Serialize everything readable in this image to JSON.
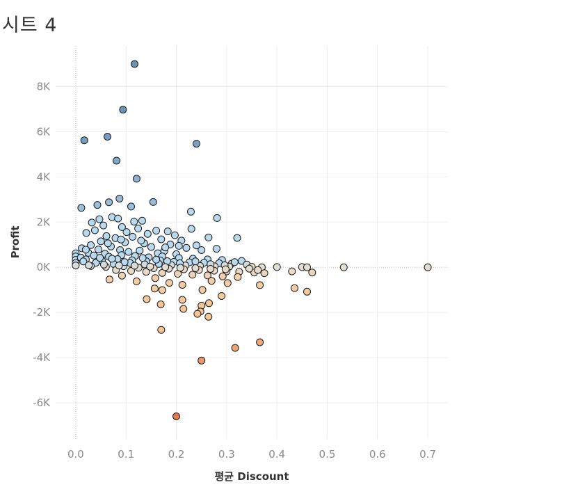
{
  "sheet": {
    "title": "시트 4"
  },
  "colors": {
    "positive": "#6b93b8",
    "positive_light": "#b9d9ee",
    "neutral": "#e4ddd1",
    "negative_light": "#f6c795",
    "negative": "#e07b4f"
  },
  "chart_data": {
    "type": "scatter",
    "title": "시트 4",
    "xlabel": "평균 Discount",
    "ylabel": "Profit",
    "xlim": [
      -0.04,
      0.74
    ],
    "ylim": [
      -7600,
      9800
    ],
    "x_ticks": [
      0.0,
      0.1,
      0.2,
      0.3,
      0.4,
      0.5,
      0.6,
      0.7
    ],
    "x_tick_labels": [
      "0.0",
      "0.1",
      "0.2",
      "0.3",
      "0.4",
      "0.5",
      "0.6",
      "0.7"
    ],
    "y_ticks": [
      8000,
      6000,
      4000,
      2000,
      0,
      -2000,
      -4000,
      -6000
    ],
    "y_tick_labels": [
      "8K",
      "6K",
      "4K",
      "2K",
      "0K",
      "-2K",
      "-4K",
      "-6K"
    ],
    "grid": true,
    "color_by": "Profit (diverging blue-orange)",
    "points": [
      [
        0.117,
        9000
      ],
      [
        0.094,
        6980
      ],
      [
        0.017,
        5620
      ],
      [
        0.063,
        5780
      ],
      [
        0.24,
        5470
      ],
      [
        0.081,
        4720
      ],
      [
        0.121,
        3920
      ],
      [
        0.087,
        3040
      ],
      [
        0.066,
        2880
      ],
      [
        0.154,
        2890
      ],
      [
        0.043,
        2760
      ],
      [
        0.011,
        2630
      ],
      [
        0.11,
        2690
      ],
      [
        0.229,
        2460
      ],
      [
        0.281,
        2180
      ],
      [
        0.072,
        2220
      ],
      [
        0.084,
        2160
      ],
      [
        0.032,
        1980
      ],
      [
        0.047,
        2130
      ],
      [
        0.116,
        2020
      ],
      [
        0.132,
        2060
      ],
      [
        0.055,
        1850
      ],
      [
        0.092,
        1780
      ],
      [
        0.124,
        1720
      ],
      [
        0.16,
        1620
      ],
      [
        0.183,
        1590
      ],
      [
        0.23,
        1700
      ],
      [
        0.021,
        1520
      ],
      [
        0.038,
        1640
      ],
      [
        0.101,
        1560
      ],
      [
        0.143,
        1480
      ],
      [
        0.197,
        1420
      ],
      [
        0.321,
        1300
      ],
      [
        0.264,
        1320
      ],
      [
        0.061,
        1380
      ],
      [
        0.079,
        1290
      ],
      [
        0.113,
        1350
      ],
      [
        0.17,
        1240
      ],
      [
        0.21,
        1180
      ],
      [
        0.05,
        1150
      ],
      [
        0.098,
        1110
      ],
      [
        0.136,
        1060
      ],
      [
        0.188,
        1010
      ],
      [
        0.24,
        970
      ],
      [
        0.03,
        980
      ],
      [
        0.07,
        920
      ],
      [
        0.15,
        900
      ],
      [
        0.22,
        860
      ],
      [
        0.28,
        820
      ],
      [
        0.012,
        840
      ],
      [
        0.045,
        790
      ],
      [
        0.088,
        760
      ],
      [
        0.127,
        740
      ],
      [
        0.176,
        720
      ],
      [
        0.25,
        760
      ],
      [
        0.105,
        680
      ],
      [
        0.025,
        640
      ],
      [
        0.058,
        600
      ],
      [
        0.163,
        620
      ],
      [
        0.2,
        580
      ],
      [
        0.0,
        620
      ],
      [
        0.0,
        480
      ],
      [
        0.0,
        330
      ],
      [
        0.0,
        190
      ],
      [
        0.0,
        80
      ],
      [
        0.01,
        430
      ],
      [
        0.036,
        520
      ],
      [
        0.066,
        470
      ],
      [
        0.091,
        540
      ],
      [
        0.118,
        500
      ],
      [
        0.145,
        440
      ],
      [
        0.172,
        480
      ],
      [
        0.205,
        410
      ],
      [
        0.233,
        380
      ],
      [
        0.262,
        350
      ],
      [
        0.291,
        320
      ],
      [
        0.33,
        280
      ],
      [
        0.02,
        350
      ],
      [
        0.052,
        300
      ],
      [
        0.083,
        360
      ],
      [
        0.112,
        310
      ],
      [
        0.14,
        270
      ],
      [
        0.168,
        300
      ],
      [
        0.195,
        240
      ],
      [
        0.226,
        220
      ],
      [
        0.255,
        200
      ],
      [
        0.285,
        180
      ],
      [
        0.31,
        160
      ],
      [
        0.34,
        120
      ],
      [
        0.04,
        200
      ],
      [
        0.075,
        150
      ],
      [
        0.108,
        190
      ],
      [
        0.137,
        130
      ],
      [
        0.165,
        150
      ],
      [
        0.19,
        100
      ],
      [
        0.218,
        80
      ],
      [
        0.247,
        60
      ],
      [
        0.276,
        40
      ],
      [
        0.305,
        30
      ],
      [
        0.35,
        20
      ],
      [
        0.37,
        0
      ],
      [
        0.4,
        10
      ],
      [
        0.45,
        10
      ],
      [
        0.46,
        0
      ],
      [
        0.533,
        0
      ],
      [
        0.7,
        0
      ],
      [
        0.03,
        60
      ],
      [
        0.06,
        20
      ],
      [
        0.095,
        50
      ],
      [
        0.125,
        -20
      ],
      [
        0.155,
        -40
      ],
      [
        0.185,
        -60
      ],
      [
        0.215,
        -90
      ],
      [
        0.245,
        -120
      ],
      [
        0.275,
        -150
      ],
      [
        0.3,
        -180
      ],
      [
        0.325,
        -200
      ],
      [
        0.355,
        -230
      ],
      [
        0.375,
        -260
      ],
      [
        0.43,
        -180
      ],
      [
        0.47,
        -230
      ],
      [
        0.08,
        -120
      ],
      [
        0.11,
        -160
      ],
      [
        0.14,
        -200
      ],
      [
        0.172,
        -250
      ],
      [
        0.203,
        -290
      ],
      [
        0.232,
        -330
      ],
      [
        0.262,
        -360
      ],
      [
        0.292,
        -400
      ],
      [
        0.322,
        -430
      ],
      [
        0.067,
        -540
      ],
      [
        0.092,
        -370
      ],
      [
        0.121,
        -620
      ],
      [
        0.158,
        -480
      ],
      [
        0.186,
        -690
      ],
      [
        0.212,
        -780
      ],
      [
        0.27,
        -600
      ],
      [
        0.302,
        -700
      ],
      [
        0.366,
        -790
      ],
      [
        0.435,
        -920
      ],
      [
        0.46,
        -1080
      ],
      [
        0.157,
        -940
      ],
      [
        0.172,
        -1010
      ],
      [
        0.252,
        -1000
      ],
      [
        0.29,
        -1270
      ],
      [
        0.141,
        -1410
      ],
      [
        0.212,
        -1440
      ],
      [
        0.169,
        -1640
      ],
      [
        0.265,
        -1590
      ],
      [
        0.25,
        -1700
      ],
      [
        0.214,
        -1840
      ],
      [
        0.248,
        -1960
      ],
      [
        0.242,
        -2060
      ],
      [
        0.264,
        -2190
      ],
      [
        0.17,
        -2770
      ],
      [
        0.317,
        -3570
      ],
      [
        0.366,
        -3320
      ],
      [
        0.25,
        -4130
      ],
      [
        0.2,
        -6600
      ],
      [
        0.015,
        260
      ],
      [
        0.048,
        420
      ],
      [
        0.072,
        380
      ],
      [
        0.097,
        230
      ],
      [
        0.133,
        410
      ],
      [
        0.16,
        340
      ],
      [
        0.182,
        270
      ],
      [
        0.207,
        180
      ],
      [
        0.238,
        260
      ],
      [
        0.268,
        140
      ],
      [
        0.296,
        90
      ],
      [
        0.316,
        230
      ],
      [
        0.345,
        -60
      ],
      [
        0.362,
        -120
      ],
      [
        0.02,
        780
      ],
      [
        0.064,
        1060
      ],
      [
        0.09,
        1230
      ],
      [
        0.13,
        1180
      ],
      [
        0.178,
        880
      ],
      [
        0.205,
        950
      ],
      [
        0.026,
        90
      ],
      [
        0.056,
        120
      ],
      [
        0.086,
        80
      ],
      [
        0.117,
        70
      ],
      [
        0.148,
        30
      ],
      [
        0.178,
        10
      ],
      [
        0.208,
        -20
      ],
      [
        0.238,
        -40
      ],
      [
        0.268,
        -70
      ],
      [
        0.298,
        -90
      ]
    ]
  }
}
